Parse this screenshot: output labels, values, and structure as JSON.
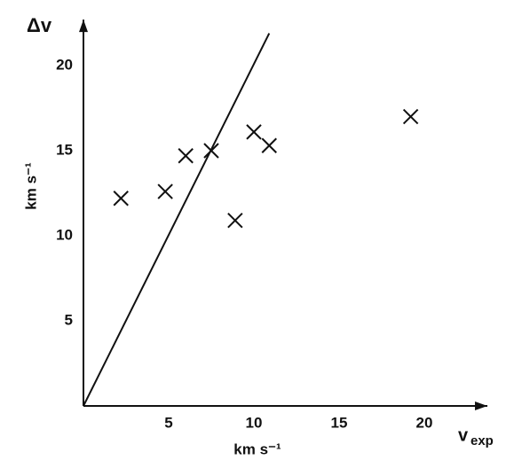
{
  "chart_data": {
    "type": "scatter",
    "y_label": "Δv",
    "y_unit": "km s⁻¹",
    "x_label": "v",
    "x_label_sub": "exp",
    "x_unit": "km s⁻¹",
    "x": [
      2.2,
      4.8,
      6.0,
      7.5,
      8.9,
      10.0,
      10.9,
      19.2
    ],
    "y": [
      12.2,
      12.6,
      14.7,
      15.0,
      10.9,
      16.1,
      15.3,
      17.0
    ],
    "marker": "x",
    "color": "#111111",
    "reference_line": {
      "x": [
        0,
        10.9
      ],
      "y": [
        0,
        21.9
      ]
    },
    "xlim": [
      0,
      23.7
    ],
    "ylim": [
      0,
      22.7
    ],
    "xticks": [
      5,
      10,
      15,
      20
    ],
    "yticks": [
      5,
      10,
      15,
      20
    ],
    "grid": false
  }
}
